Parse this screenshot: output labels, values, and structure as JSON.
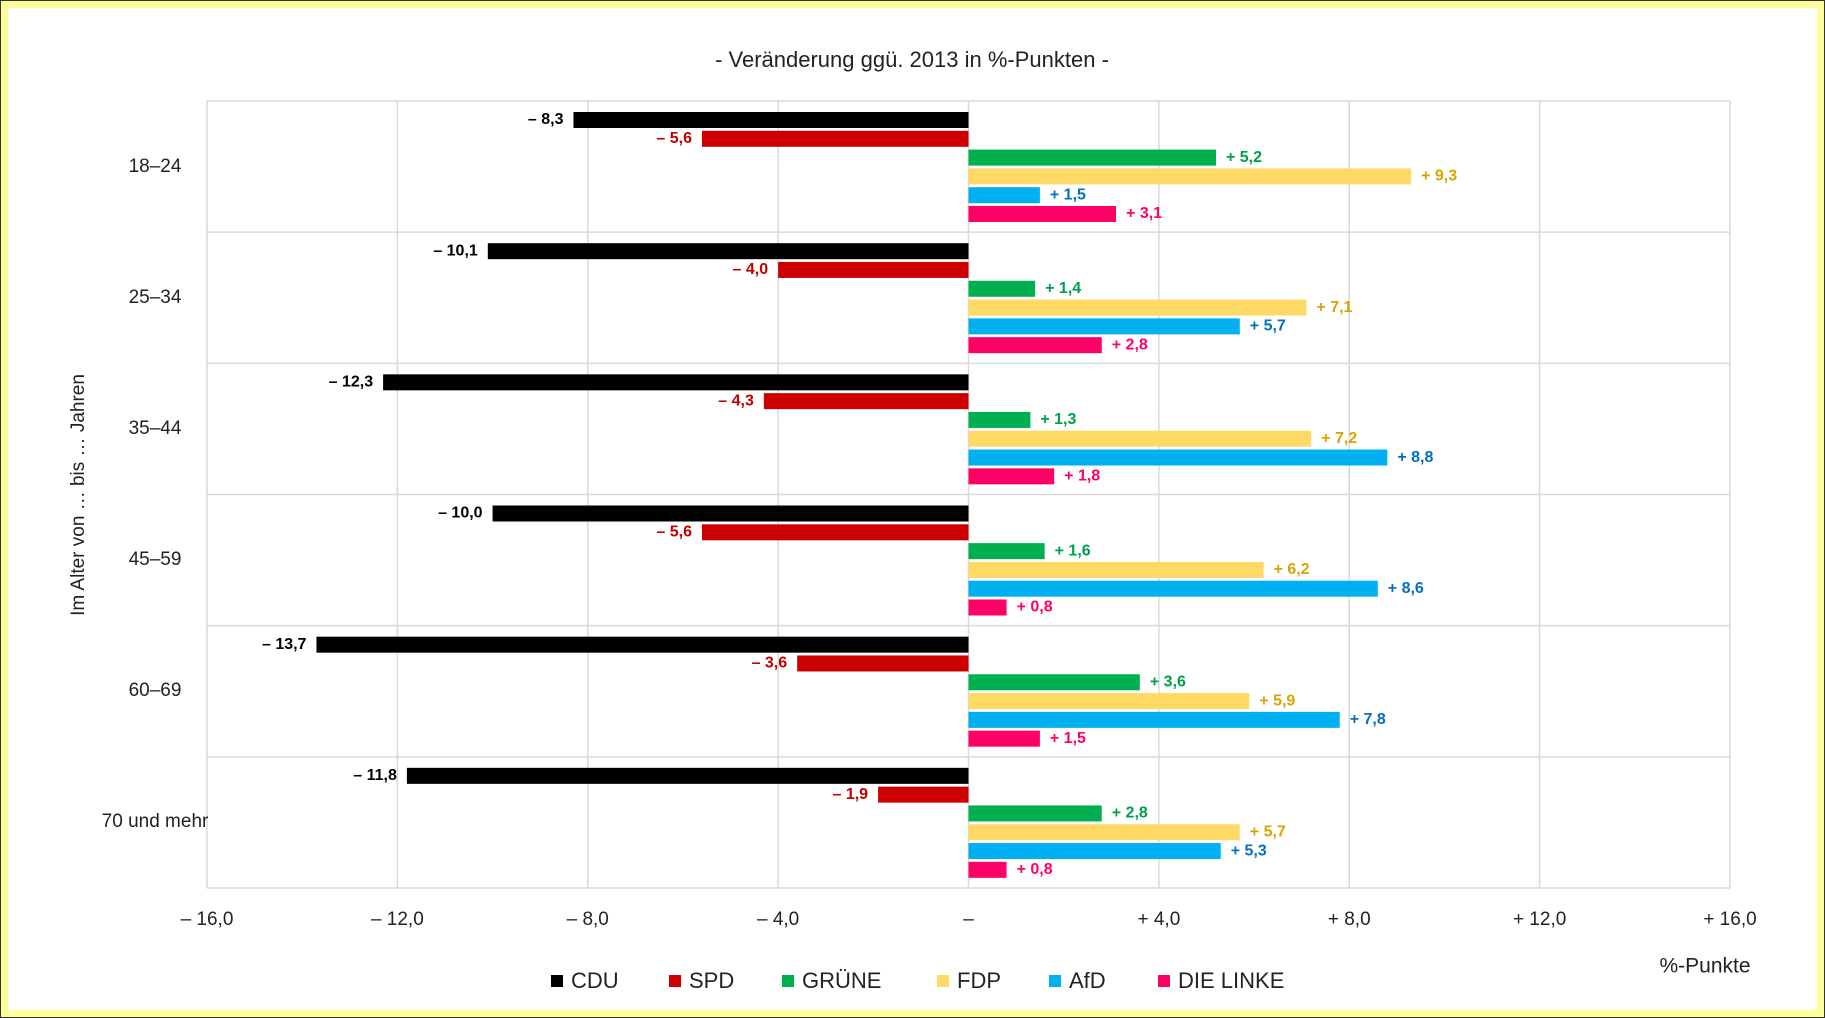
{
  "chart_data": {
    "type": "hbar",
    "title": "- Veränderung ggü. 2013 in %-Punkten -",
    "y_label": "Im Alter von … bis … Jahren",
    "x_unit": "%-Punkte",
    "categories": [
      "18–24",
      "25–34",
      "35–44",
      "45–59",
      "60–69",
      "70 und mehr"
    ],
    "series": [
      {
        "name": "CDU",
        "color": "#000000",
        "label_color": "#000000",
        "values": [
          -8.3,
          -10.1,
          -12.3,
          -10.0,
          -13.7,
          -11.8
        ],
        "value_labels": [
          "– 8,3",
          "– 10,1",
          "– 12,3",
          "– 10,0",
          "– 13,7",
          "– 11,8"
        ]
      },
      {
        "name": "SPD",
        "color": "#cc0000",
        "label_color": "#c00000",
        "values": [
          -5.6,
          -4.0,
          -4.3,
          -5.6,
          -3.6,
          -1.9
        ],
        "value_labels": [
          "– 5,6",
          "– 4,0",
          "– 4,3",
          "– 5,6",
          "– 3,6",
          "– 1,9"
        ]
      },
      {
        "name": "GRÜNE",
        "color": "#00b050",
        "label_color": "#00a04a",
        "values": [
          5.2,
          1.4,
          1.3,
          1.6,
          3.6,
          2.8
        ],
        "value_labels": [
          "+ 5,2",
          "+ 1,4",
          "+ 1,3",
          "+ 1,6",
          "+ 3,6",
          "+ 2,8"
        ]
      },
      {
        "name": "FDP",
        "color": "#ffd966",
        "label_color": "#d9a300",
        "values": [
          9.3,
          7.1,
          7.2,
          6.2,
          5.9,
          5.7
        ],
        "value_labels": [
          "+ 9,3",
          "+ 7,1",
          "+ 7,2",
          "+ 6,2",
          "+ 5,9",
          "+ 5,7"
        ]
      },
      {
        "name": "AfD",
        "color": "#00b0f0",
        "label_color": "#0070c0",
        "values": [
          1.5,
          5.7,
          8.8,
          8.6,
          7.8,
          5.3
        ],
        "value_labels": [
          "+ 1,5",
          "+ 5,7",
          "+ 8,8",
          "+ 8,6",
          "+ 7,8",
          "+ 5,3"
        ]
      },
      {
        "name": "DIE LINKE",
        "color": "#ff0066",
        "label_color": "#ff0066",
        "values": [
          3.1,
          2.8,
          1.8,
          0.8,
          1.5,
          0.8
        ],
        "value_labels": [
          "+ 3,1",
          "+ 2,8",
          "+ 1,8",
          "+ 0,8",
          "+ 1,5",
          "+ 0,8"
        ]
      }
    ],
    "xlim": [
      -16,
      16
    ],
    "xticks": [
      {
        "value": -16,
        "label": "– 16,0"
      },
      {
        "value": -12,
        "label": "– 12,0"
      },
      {
        "value": -8,
        "label": "– 8,0"
      },
      {
        "value": -4,
        "label": "– 4,0"
      },
      {
        "value": 0,
        "label": "–"
      },
      {
        "value": 4,
        "label": "+ 4,0"
      },
      {
        "value": 8,
        "label": "+ 8,0"
      },
      {
        "value": 12,
        "label": "+ 12,0"
      },
      {
        "value": 16,
        "label": "+ 16,0"
      }
    ],
    "grid": true,
    "legend": "bottom"
  }
}
